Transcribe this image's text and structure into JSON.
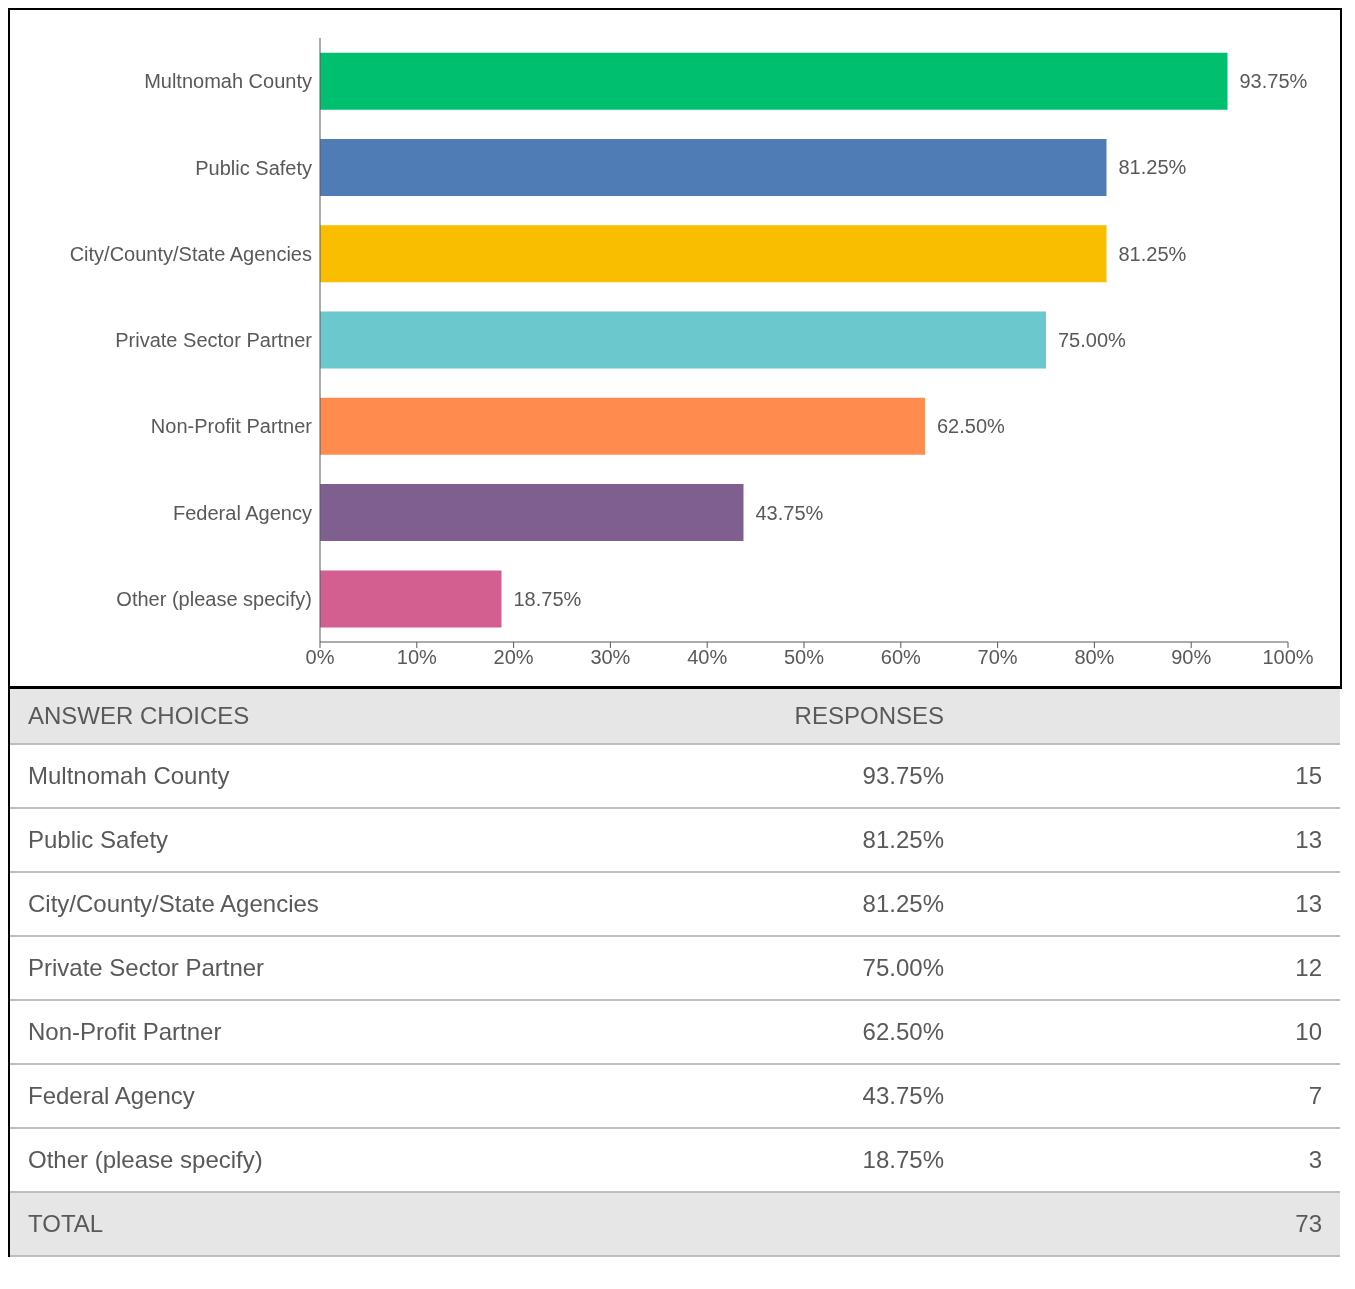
{
  "chart_data": [
    {
      "type": "bar",
      "orientation": "horizontal",
      "categories": [
        "Multnomah County",
        "Public Safety",
        "City/County/State Agencies",
        "Private Sector Partner",
        "Non-Profit Partner",
        "Federal Agency",
        "Other (please specify)"
      ],
      "values": [
        93.75,
        81.25,
        81.25,
        75.0,
        62.5,
        43.75,
        18.75
      ],
      "colors": [
        "#00bf6f",
        "#507cb6",
        "#f9be00",
        "#6bc8cd",
        "#ff8b4f",
        "#7f5f90",
        "#d25f90"
      ],
      "value_labels": [
        "93.75%",
        "81.25%",
        "81.25%",
        "75.00%",
        "62.50%",
        "43.75%",
        "18.75%"
      ],
      "xlim": [
        0,
        100
      ],
      "xticks": [
        {
          "value": 0,
          "label": "0%"
        },
        {
          "value": 10,
          "label": "10%"
        },
        {
          "value": 20,
          "label": "20%"
        },
        {
          "value": 30,
          "label": "30%"
        },
        {
          "value": 40,
          "label": "40%"
        },
        {
          "value": 50,
          "label": "50%"
        },
        {
          "value": 60,
          "label": "60%"
        },
        {
          "value": 70,
          "label": "70%"
        },
        {
          "value": 80,
          "label": "80%"
        },
        {
          "value": 90,
          "label": "90%"
        },
        {
          "value": 100,
          "label": "100%"
        }
      ],
      "legend": false
    },
    {
      "type": "other",
      "categories": [
        "Multnomah County",
        "Public Safety",
        "City/County/State Agencies",
        "Private Sector Partner",
        "Non-Profit Partner",
        "Federal Agency",
        "Other (please specify)"
      ],
      "series": [
        {
          "name": "RESPONSES",
          "values": [
            93.75,
            81.25,
            81.25,
            75.0,
            62.5,
            43.75,
            18.75
          ],
          "value_labels": [
            "93.75%",
            "81.25%",
            "81.25%",
            "75.00%",
            "62.50%",
            "43.75%",
            "18.75%"
          ]
        },
        {
          "values": [
            15,
            13,
            13,
            12,
            10,
            7,
            3
          ]
        }
      ],
      "annotations": [
        "ANSWER CHOICES",
        "TOTAL",
        "73"
      ],
      "data_labels": true
    }
  ]
}
